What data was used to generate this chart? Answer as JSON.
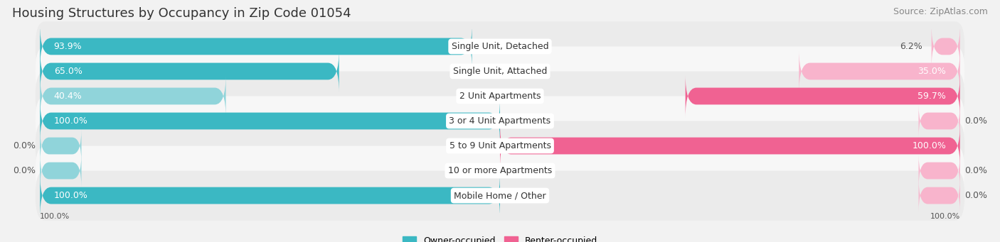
{
  "title": "Housing Structures by Occupancy in Zip Code 01054",
  "source": "Source: ZipAtlas.com",
  "categories": [
    "Single Unit, Detached",
    "Single Unit, Attached",
    "2 Unit Apartments",
    "3 or 4 Unit Apartments",
    "5 to 9 Unit Apartments",
    "10 or more Apartments",
    "Mobile Home / Other"
  ],
  "owner_pct": [
    93.9,
    65.0,
    40.4,
    100.0,
    0.0,
    0.0,
    100.0
  ],
  "renter_pct": [
    6.2,
    35.0,
    59.7,
    0.0,
    100.0,
    0.0,
    0.0
  ],
  "owner_color": "#3BB8C3",
  "renter_color": "#F06292",
  "owner_color_light": "#90D4DA",
  "renter_color_light": "#F8B4CC",
  "bg_color": "#F2F2F2",
  "row_bg_odd": "#EBEBEB",
  "row_bg_even": "#F7F7F7",
  "title_fontsize": 13,
  "source_fontsize": 9,
  "label_fontsize": 9,
  "cat_fontsize": 9,
  "bar_height": 0.68
}
